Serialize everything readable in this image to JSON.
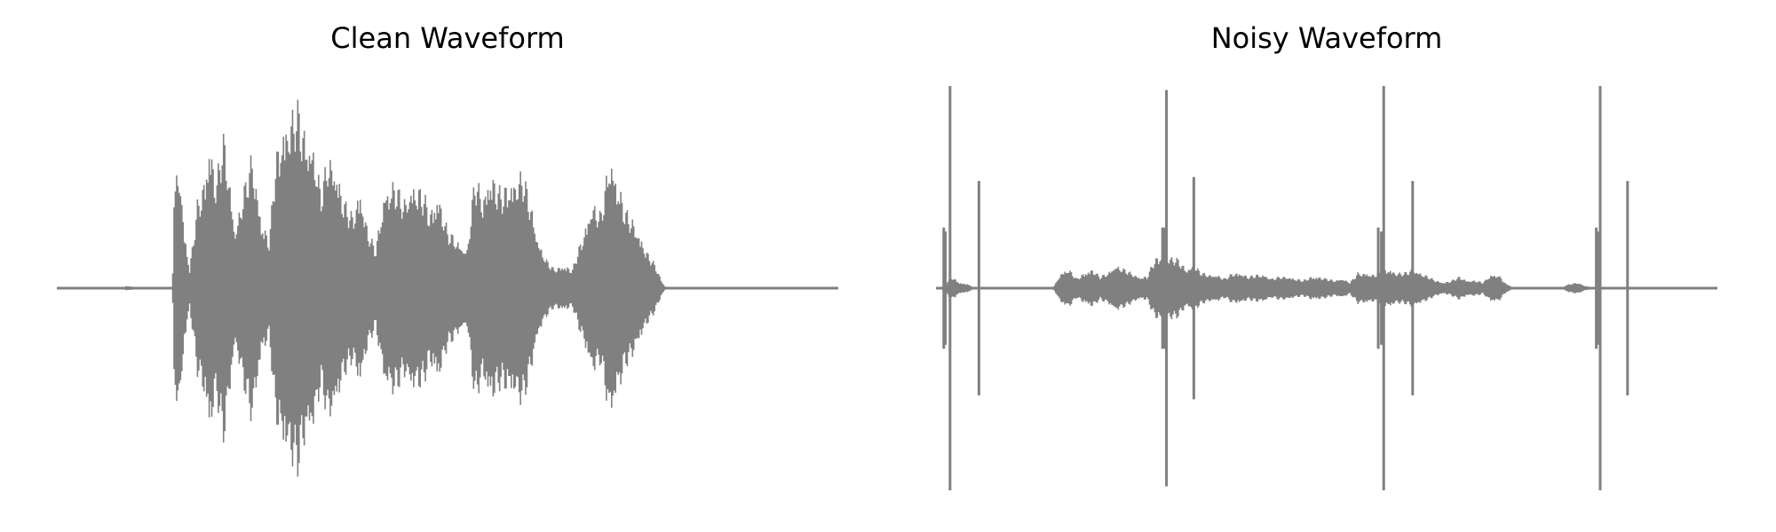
{
  "chart_data": [
    {
      "type": "line",
      "title": "Clean Waveform",
      "xlabel": "",
      "ylabel": "",
      "axes_visible": false,
      "grid": false,
      "ylim": [
        -1,
        1
      ],
      "line_color": "#808080",
      "envelope": [
        [
          0.0,
          0.0
        ],
        [
          0.085,
          0.0
        ],
        [
          0.088,
          0.01
        ],
        [
          0.12,
          0.0
        ],
        [
          0.148,
          0.0
        ],
        [
          0.15,
          0.55
        ],
        [
          0.158,
          0.62
        ],
        [
          0.163,
          0.3
        ],
        [
          0.17,
          0.1
        ],
        [
          0.18,
          0.44
        ],
        [
          0.188,
          0.55
        ],
        [
          0.196,
          0.78
        ],
        [
          0.204,
          0.55
        ],
        [
          0.213,
          0.8
        ],
        [
          0.22,
          0.6
        ],
        [
          0.228,
          0.3
        ],
        [
          0.24,
          0.52
        ],
        [
          0.25,
          0.7
        ],
        [
          0.262,
          0.35
        ],
        [
          0.272,
          0.25
        ],
        [
          0.28,
          0.68
        ],
        [
          0.29,
          0.85
        ],
        [
          0.3,
          0.9
        ],
        [
          0.308,
          0.95
        ],
        [
          0.318,
          0.8
        ],
        [
          0.328,
          0.75
        ],
        [
          0.338,
          0.5
        ],
        [
          0.348,
          0.7
        ],
        [
          0.358,
          0.62
        ],
        [
          0.368,
          0.45
        ],
        [
          0.378,
          0.38
        ],
        [
          0.388,
          0.52
        ],
        [
          0.398,
          0.3
        ],
        [
          0.408,
          0.2
        ],
        [
          0.42,
          0.52
        ],
        [
          0.432,
          0.55
        ],
        [
          0.444,
          0.45
        ],
        [
          0.455,
          0.55
        ],
        [
          0.468,
          0.5
        ],
        [
          0.478,
          0.4
        ],
        [
          0.488,
          0.5
        ],
        [
          0.5,
          0.3
        ],
        [
          0.512,
          0.25
        ],
        [
          0.525,
          0.2
        ],
        [
          0.535,
          0.58
        ],
        [
          0.545,
          0.48
        ],
        [
          0.555,
          0.6
        ],
        [
          0.568,
          0.5
        ],
        [
          0.578,
          0.55
        ],
        [
          0.588,
          0.58
        ],
        [
          0.596,
          0.6
        ],
        [
          0.606,
          0.45
        ],
        [
          0.616,
          0.25
        ],
        [
          0.626,
          0.15
        ],
        [
          0.636,
          0.1
        ],
        [
          0.648,
          0.12
        ],
        [
          0.66,
          0.1
        ],
        [
          0.675,
          0.3
        ],
        [
          0.685,
          0.45
        ],
        [
          0.696,
          0.38
        ],
        [
          0.708,
          0.7
        ],
        [
          0.718,
          0.55
        ],
        [
          0.728,
          0.4
        ],
        [
          0.738,
          0.35
        ],
        [
          0.746,
          0.28
        ],
        [
          0.756,
          0.18
        ],
        [
          0.766,
          0.12
        ],
        [
          0.776,
          0.02
        ],
        [
          0.78,
          0.0
        ],
        [
          1.0,
          0.0
        ]
      ],
      "spikes": []
    },
    {
      "type": "line",
      "title": "Noisy Waveform",
      "xlabel": "",
      "ylabel": "",
      "axes_visible": false,
      "grid": false,
      "ylim": [
        -1,
        1
      ],
      "line_color": "#808080",
      "envelope": [
        [
          0.0,
          0.0
        ],
        [
          0.01,
          0.01
        ],
        [
          0.02,
          0.06
        ],
        [
          0.03,
          0.03
        ],
        [
          0.04,
          0.02
        ],
        [
          0.05,
          0.0
        ],
        [
          0.15,
          0.0
        ],
        [
          0.16,
          0.08
        ],
        [
          0.17,
          0.1
        ],
        [
          0.18,
          0.05
        ],
        [
          0.19,
          0.08
        ],
        [
          0.2,
          0.1
        ],
        [
          0.21,
          0.06
        ],
        [
          0.22,
          0.08
        ],
        [
          0.23,
          0.12
        ],
        [
          0.24,
          0.1
        ],
        [
          0.25,
          0.08
        ],
        [
          0.26,
          0.06
        ],
        [
          0.27,
          0.06
        ],
        [
          0.28,
          0.15
        ],
        [
          0.29,
          0.18
        ],
        [
          0.3,
          0.16
        ],
        [
          0.31,
          0.15
        ],
        [
          0.32,
          0.1
        ],
        [
          0.33,
          0.12
        ],
        [
          0.34,
          0.08
        ],
        [
          0.35,
          0.07
        ],
        [
          0.36,
          0.07
        ],
        [
          0.37,
          0.05
        ],
        [
          0.38,
          0.08
        ],
        [
          0.39,
          0.08
        ],
        [
          0.4,
          0.06
        ],
        [
          0.41,
          0.07
        ],
        [
          0.42,
          0.07
        ],
        [
          0.43,
          0.05
        ],
        [
          0.44,
          0.06
        ],
        [
          0.45,
          0.06
        ],
        [
          0.46,
          0.05
        ],
        [
          0.47,
          0.04
        ],
        [
          0.48,
          0.06
        ],
        [
          0.49,
          0.06
        ],
        [
          0.5,
          0.05
        ],
        [
          0.51,
          0.04
        ],
        [
          0.52,
          0.05
        ],
        [
          0.53,
          0.03
        ],
        [
          0.54,
          0.08
        ],
        [
          0.55,
          0.08
        ],
        [
          0.56,
          0.07
        ],
        [
          0.57,
          0.09
        ],
        [
          0.58,
          0.1
        ],
        [
          0.59,
          0.08
        ],
        [
          0.6,
          0.08
        ],
        [
          0.61,
          0.1
        ],
        [
          0.62,
          0.08
        ],
        [
          0.63,
          0.06
        ],
        [
          0.64,
          0.04
        ],
        [
          0.65,
          0.03
        ],
        [
          0.66,
          0.04
        ],
        [
          0.67,
          0.06
        ],
        [
          0.68,
          0.04
        ],
        [
          0.69,
          0.04
        ],
        [
          0.7,
          0.03
        ],
        [
          0.71,
          0.07
        ],
        [
          0.72,
          0.07
        ],
        [
          0.73,
          0.02
        ],
        [
          0.74,
          0.0
        ],
        [
          0.8,
          0.0
        ],
        [
          0.81,
          0.02
        ],
        [
          0.82,
          0.03
        ],
        [
          0.83,
          0.01
        ],
        [
          0.85,
          0.0
        ],
        [
          1.0,
          0.0
        ]
      ],
      "spikes": [
        [
          0.01,
          0.3
        ],
        [
          0.012,
          0.28
        ],
        [
          0.018,
          1.0
        ],
        [
          0.055,
          0.53
        ],
        [
          0.29,
          0.3
        ],
        [
          0.293,
          0.3
        ],
        [
          0.295,
          0.98
        ],
        [
          0.33,
          0.55
        ],
        [
          0.566,
          0.3
        ],
        [
          0.57,
          0.28
        ],
        [
          0.573,
          1.0
        ],
        [
          0.61,
          0.53
        ],
        [
          0.845,
          0.3
        ],
        [
          0.848,
          0.28
        ],
        [
          0.85,
          1.0
        ],
        [
          0.885,
          0.53
        ]
      ]
    }
  ]
}
